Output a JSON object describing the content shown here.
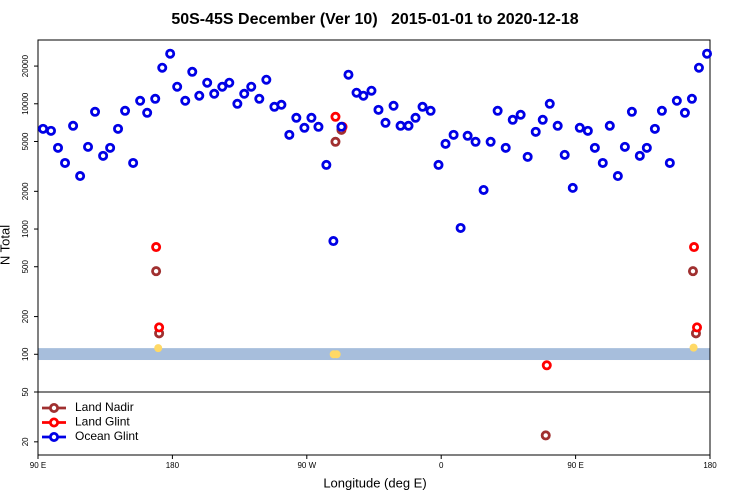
{
  "chart_data": {
    "type": "scatter",
    "title": "50S-45S December (Ver 10)   2015-01-01 to 2020-12-18",
    "x_label": "Longitude (deg E)",
    "y_label": "N Total",
    "log_y": true,
    "legend": "lower left",
    "xlim": [
      90,
      540
    ],
    "ylim": [
      15.7,
      32300
    ],
    "xticks": [
      {
        "value": 90,
        "label": "90 E"
      },
      {
        "value": 180,
        "label": "180"
      },
      {
        "value": 270,
        "label": "90 W"
      },
      {
        "value": 360,
        "label": "0"
      },
      {
        "value": 450,
        "label": "90 E"
      },
      {
        "value": 540,
        "label": "180"
      }
    ],
    "yticks": [
      20,
      50,
      100,
      200,
      500,
      1000,
      2000,
      5000,
      10000,
      20000
    ],
    "band": [
      90,
      112
    ],
    "band_color": "#a7bedc",
    "hline": 50,
    "series": [
      {
        "name": "Land Nadir",
        "color": "#a03030",
        "x": [
          169.1,
          171.1,
          289.2,
          293.2,
          430.0,
          528.6,
          530.6
        ],
        "values": [
          461,
          147,
          4970,
          6190,
          22.5,
          461,
          147
        ]
      },
      {
        "name": "Land Glint",
        "color": "#ff0000",
        "x": [
          169.1,
          171.1,
          289.2,
          293.9,
          430.7,
          529.3,
          531.3
        ],
        "values": [
          718,
          164,
          7870,
          6550,
          81.7,
          718,
          164
        ]
      },
      {
        "name": "Ocean Glint",
        "color": "#0000e6",
        "x": [
          93.4,
          98.7,
          103.4,
          108.1,
          113.5,
          118.2,
          123.5,
          128.2,
          133.6,
          138.3,
          143.6,
          148.3,
          153.7,
          158.4,
          163.1,
          168.5,
          173.2,
          178.5,
          183.2,
          188.6,
          193.3,
          198.0,
          203.3,
          208.0,
          213.4,
          218.1,
          223.5,
          228.1,
          232.8,
          238.2,
          242.9,
          248.3,
          253.0,
          258.3,
          263.0,
          268.4,
          273.1,
          277.8,
          283.1,
          287.8,
          293.2,
          297.9,
          303.3,
          307.9,
          313.3,
          318.0,
          322.7,
          328.1,
          332.8,
          338.1,
          342.8,
          347.5,
          352.9,
          358.2,
          362.9,
          368.3,
          373.0,
          377.7,
          383.0,
          388.4,
          393.1,
          397.8,
          403.2,
          407.9,
          413.2,
          417.9,
          423.3,
          428.0,
          432.7,
          438.0,
          442.7,
          448.1,
          452.8,
          458.2,
          462.9,
          468.2,
          472.9,
          478.3,
          483.0,
          487.7,
          493.0,
          497.7,
          503.1,
          507.8,
          513.1,
          517.8,
          523.2,
          527.9,
          532.6,
          538.0
        ],
        "values": [
          6310,
          6080,
          4450,
          3370,
          6670,
          2650,
          4530,
          8630,
          3840,
          4450,
          6310,
          8790,
          3370,
          10570,
          8470,
          10960,
          19400,
          25100,
          13680,
          10570,
          18000,
          11590,
          14720,
          12020,
          13680,
          14720,
          10000,
          12020,
          13680,
          10960,
          15560,
          9460,
          9820,
          5650,
          7730,
          6430,
          7730,
          6550,
          3250,
          802,
          6550,
          17060,
          12250,
          11590,
          12710,
          8950,
          7050,
          9640,
          6670,
          6670,
          7730,
          9460,
          8790,
          3250,
          4790,
          5650,
          1020,
          5550,
          4970,
          2050,
          4970,
          8790,
          4450,
          7450,
          8170,
          3770,
          5970,
          7450,
          10000,
          6670,
          3910,
          2130,
          6430,
          6080,
          4450,
          3370,
          6670,
          2650,
          4530,
          8630,
          3840,
          4450,
          6310,
          8790,
          3370,
          10570,
          8470,
          10960,
          19400,
          25100
        ]
      },
      {
        "color": "#ffd966",
        "x": [
          170.5,
          288.0,
          290.0,
          529.0
        ],
        "values": [
          112,
          100,
          100,
          113
        ]
      }
    ]
  }
}
